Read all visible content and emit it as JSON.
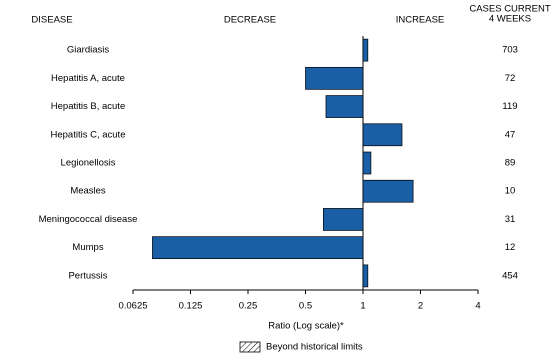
{
  "chart_data": {
    "type": "bar",
    "orientation": "horizontal",
    "headers": {
      "disease": "DISEASE",
      "decrease": "DECREASE",
      "increase": "INCREASE",
      "cases": [
        "CASES CURRENT",
        "4 WEEKS"
      ]
    },
    "categories": [
      "Giardiasis",
      "Hepatitis A, acute",
      "Hepatitis B, acute",
      "Hepatitis C, acute",
      "Legionellosis",
      "Measles",
      "Meningococcal disease",
      "Mumps",
      "Pertussis"
    ],
    "series": [
      {
        "name": "Ratio",
        "color": "#1a5ea6",
        "values": [
          1.06,
          0.5,
          0.64,
          1.6,
          1.1,
          1.83,
          0.62,
          0.079,
          1.06
        ]
      }
    ],
    "cases": [
      703,
      72,
      119,
      47,
      89,
      10,
      31,
      12,
      454
    ],
    "xlabel": "Ratio (Log scale)*",
    "xlim": [
      0.0625,
      4
    ],
    "xticks": [
      0.0625,
      0.125,
      0.25,
      0.5,
      1,
      2,
      4
    ],
    "log_scale": true,
    "log_base": 2,
    "grid": false,
    "legend": [
      {
        "label": "Beyond historical limits",
        "pattern": "hatch"
      }
    ]
  }
}
